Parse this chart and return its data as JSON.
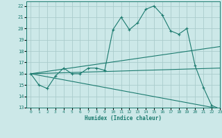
{
  "title": "",
  "xlabel": "Humidex (Indice chaleur)",
  "bg_color": "#cce8e8",
  "grid_color": "#aacccc",
  "line_color": "#1a7a6e",
  "xlim": [
    -0.5,
    23
  ],
  "ylim": [
    13,
    22.4
  ],
  "yticks": [
    13,
    14,
    15,
    16,
    17,
    18,
    19,
    20,
    21,
    22
  ],
  "xticks": [
    0,
    1,
    2,
    3,
    4,
    5,
    6,
    7,
    8,
    9,
    10,
    11,
    12,
    13,
    14,
    15,
    16,
    17,
    18,
    19,
    20,
    21,
    22,
    23
  ],
  "series": [
    {
      "x": [
        0,
        1,
        2,
        3,
        4,
        5,
        6,
        7,
        8,
        9,
        10,
        11,
        12,
        13,
        14,
        15,
        16,
        17,
        18,
        19,
        20,
        21,
        22,
        23
      ],
      "y": [
        16,
        15,
        14.7,
        15.8,
        16.5,
        16.0,
        16.0,
        16.5,
        16.5,
        16.3,
        19.9,
        21.0,
        19.9,
        20.5,
        21.7,
        22.0,
        21.2,
        19.8,
        19.5,
        20.0,
        16.7,
        14.8,
        13.2,
        12.9
      ],
      "marker": true
    },
    {
      "x": [
        0,
        23
      ],
      "y": [
        16,
        18.4
      ],
      "marker": false
    },
    {
      "x": [
        0,
        23
      ],
      "y": [
        16,
        16.5
      ],
      "marker": false
    },
    {
      "x": [
        0,
        23
      ],
      "y": [
        16,
        12.9
      ],
      "marker": false
    }
  ]
}
